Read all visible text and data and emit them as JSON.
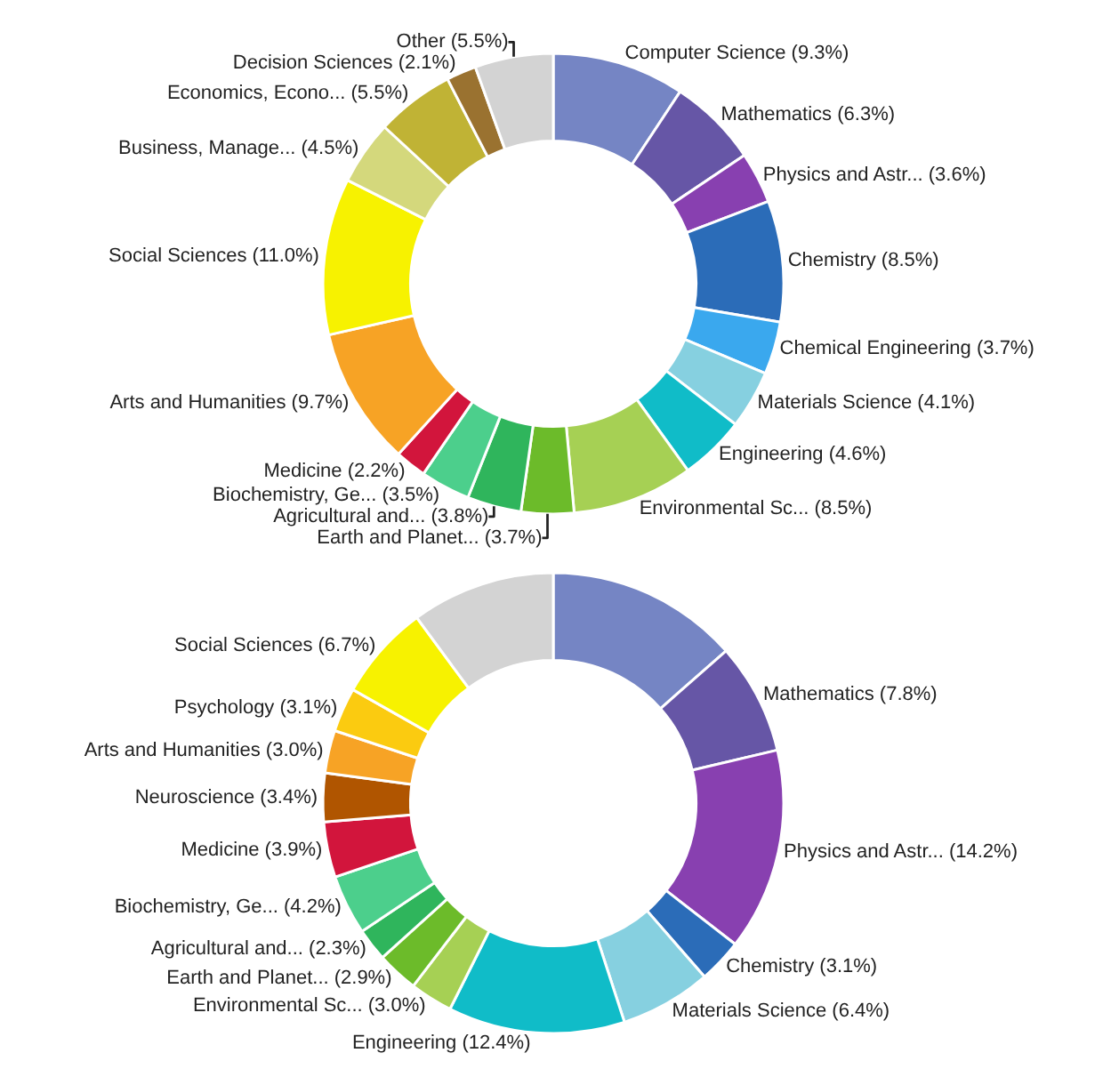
{
  "chart_data": [
    {
      "type": "donut",
      "categories": [
        "Computer Science",
        "Mathematics",
        "Physics and Astr...",
        "Chemistry",
        "Chemical Engineering",
        "Materials Science",
        "Engineering",
        "Environmental Sc...",
        "Earth and Planet...",
        "Agricultural and...",
        "Biochemistry, Ge...",
        "Medicine",
        "Arts and Humanities",
        "Social Sciences",
        "Business, Manage...",
        "Economics, Econo...",
        "Decision Sciences",
        "Other"
      ],
      "values": [
        9.3,
        6.3,
        3.6,
        8.5,
        3.7,
        4.1,
        4.6,
        8.5,
        3.7,
        3.8,
        3.5,
        2.2,
        9.7,
        11.0,
        4.5,
        5.5,
        2.1,
        5.5
      ],
      "value_labels": [
        "(9.3%)",
        "(6.3%)",
        "(3.6%)",
        "(8.5%)",
        "(3.7%)",
        "(4.1%)",
        "(4.6%)",
        "(8.5%)",
        "(3.7%)",
        "(3.8%)",
        "(3.5%)",
        "(2.2%)",
        "(9.7%)",
        "(11.0%)",
        "(4.5%)",
        "(5.5%)",
        "(2.1%)",
        "(5.5%)"
      ],
      "colors": [
        "#7585c4",
        "#6656a6",
        "#8840b0",
        "#2b6cb8",
        "#3aa8ee",
        "#86d0e0",
        "#10bcc8",
        "#a6d054",
        "#6cbb2a",
        "#2fb55c",
        "#4ccf8c",
        "#d2153c",
        "#f7a325",
        "#f7f200",
        "#d4d87c",
        "#c0b335",
        "#9a7230",
        "#d3d3d3"
      ]
    },
    {
      "type": "donut",
      "categories": [
        null,
        "Mathematics",
        "Physics and Astr...",
        "Chemistry",
        "Materials Science",
        "Engineering",
        "Environmental Sc...",
        "Earth and Planet...",
        "Agricultural and...",
        "Biochemistry, Ge...",
        "Medicine",
        "Neuroscience",
        "Arts and Humanities",
        "Psychology",
        "Social Sciences",
        null
      ],
      "values": [
        13.5,
        7.8,
        14.2,
        3.1,
        6.4,
        12.4,
        3.0,
        2.9,
        2.3,
        4.2,
        3.9,
        3.4,
        3.0,
        3.1,
        6.7,
        10.1
      ],
      "value_labels": [
        null,
        "(7.8%)",
        "(14.2%)",
        "(3.1%)",
        "(6.4%)",
        "(12.4%)",
        "(3.0%)",
        "(2.9%)",
        "(2.3%)",
        "(4.2%)",
        "(3.9%)",
        "(3.4%)",
        "(3.0%)",
        "(3.1%)",
        "(6.7%)",
        null
      ],
      "colors": [
        "#7585c4",
        "#6656a6",
        "#8840b0",
        "#2b6cb8",
        "#86d0e0",
        "#10bcc8",
        "#a6d054",
        "#6cbb2a",
        "#2fb55c",
        "#4ccf8c",
        "#d2153c",
        "#b05500",
        "#f7a325",
        "#fbcb10",
        "#f7f200",
        "#d3d3d3"
      ]
    }
  ]
}
